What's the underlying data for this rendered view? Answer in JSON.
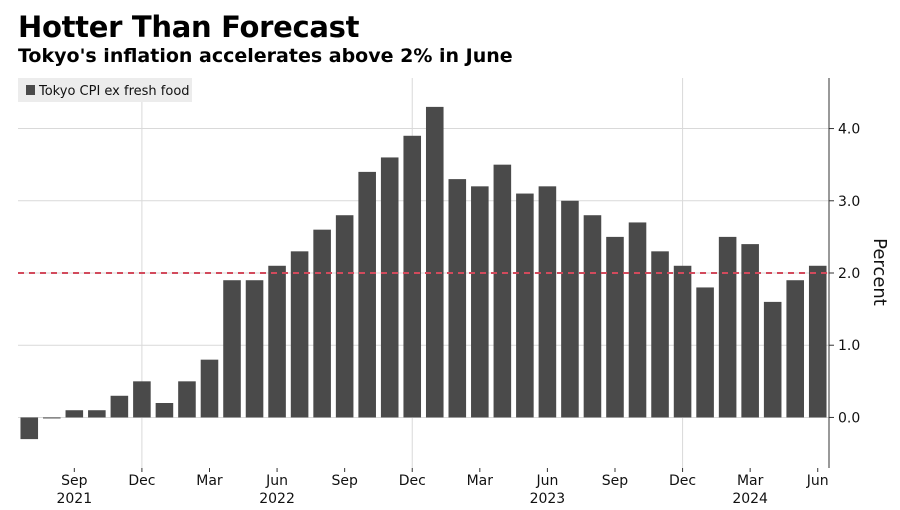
{
  "header": {
    "title": "Hotter Than Forecast",
    "subtitle": "Tokyo's inflation accelerates above 2% in June"
  },
  "colors": {
    "bar": "#4a4a4a",
    "reference_line": "#d24a5c",
    "grid": "#d9d9d9"
  },
  "chart_data": {
    "type": "bar",
    "ylabel": "Percent",
    "ylim": [
      -0.7,
      4.7
    ],
    "yticks": [
      0.0,
      1.0,
      2.0,
      3.0,
      4.0
    ],
    "ytick_labels": [
      "0.0",
      "1.0",
      "2.0",
      "3.0",
      "4.0"
    ],
    "reference_line": 2.0,
    "legend_position": "top-left",
    "series": [
      {
        "name": "Tokyo CPI ex fresh food",
        "categories": [
          "2021-07",
          "2021-08",
          "2021-09",
          "2021-10",
          "2021-11",
          "2021-12",
          "2022-01",
          "2022-02",
          "2022-03",
          "2022-04",
          "2022-05",
          "2022-06",
          "2022-07",
          "2022-08",
          "2022-09",
          "2022-10",
          "2022-11",
          "2022-12",
          "2023-01",
          "2023-02",
          "2023-03",
          "2023-04",
          "2023-05",
          "2023-06",
          "2023-07",
          "2023-08",
          "2023-09",
          "2023-10",
          "2023-11",
          "2023-12",
          "2024-01",
          "2024-02",
          "2024-03",
          "2024-04",
          "2024-05",
          "2024-06"
        ],
        "values": [
          -0.3,
          0.0,
          0.1,
          0.1,
          0.3,
          0.5,
          0.2,
          0.5,
          0.8,
          1.9,
          1.9,
          2.1,
          2.3,
          2.6,
          2.8,
          3.4,
          3.6,
          3.9,
          4.3,
          3.3,
          3.2,
          3.5,
          3.1,
          3.2,
          3.0,
          2.8,
          2.5,
          2.7,
          2.3,
          2.1,
          1.8,
          2.5,
          2.4,
          1.6,
          1.9,
          2.1
        ]
      }
    ],
    "x_month_labels": [
      {
        "category": "2021-09",
        "label": "Sep"
      },
      {
        "category": "2021-12",
        "label": "Dec"
      },
      {
        "category": "2022-03",
        "label": "Mar"
      },
      {
        "category": "2022-06",
        "label": "Jun"
      },
      {
        "category": "2022-09",
        "label": "Sep"
      },
      {
        "category": "2022-12",
        "label": "Dec"
      },
      {
        "category": "2023-03",
        "label": "Mar"
      },
      {
        "category": "2023-06",
        "label": "Jun"
      },
      {
        "category": "2023-09",
        "label": "Sep"
      },
      {
        "category": "2023-12",
        "label": "Dec"
      },
      {
        "category": "2024-03",
        "label": "Mar"
      },
      {
        "category": "2024-06",
        "label": "Jun"
      }
    ],
    "x_year_labels": [
      {
        "category": "2021-09",
        "label": "2021"
      },
      {
        "category": "2022-06",
        "label": "2022"
      },
      {
        "category": "2023-06",
        "label": "2023"
      },
      {
        "category": "2024-03",
        "label": "2024"
      }
    ],
    "x_gridlines_at": [
      "2021-12",
      "2022-12",
      "2023-12"
    ]
  }
}
